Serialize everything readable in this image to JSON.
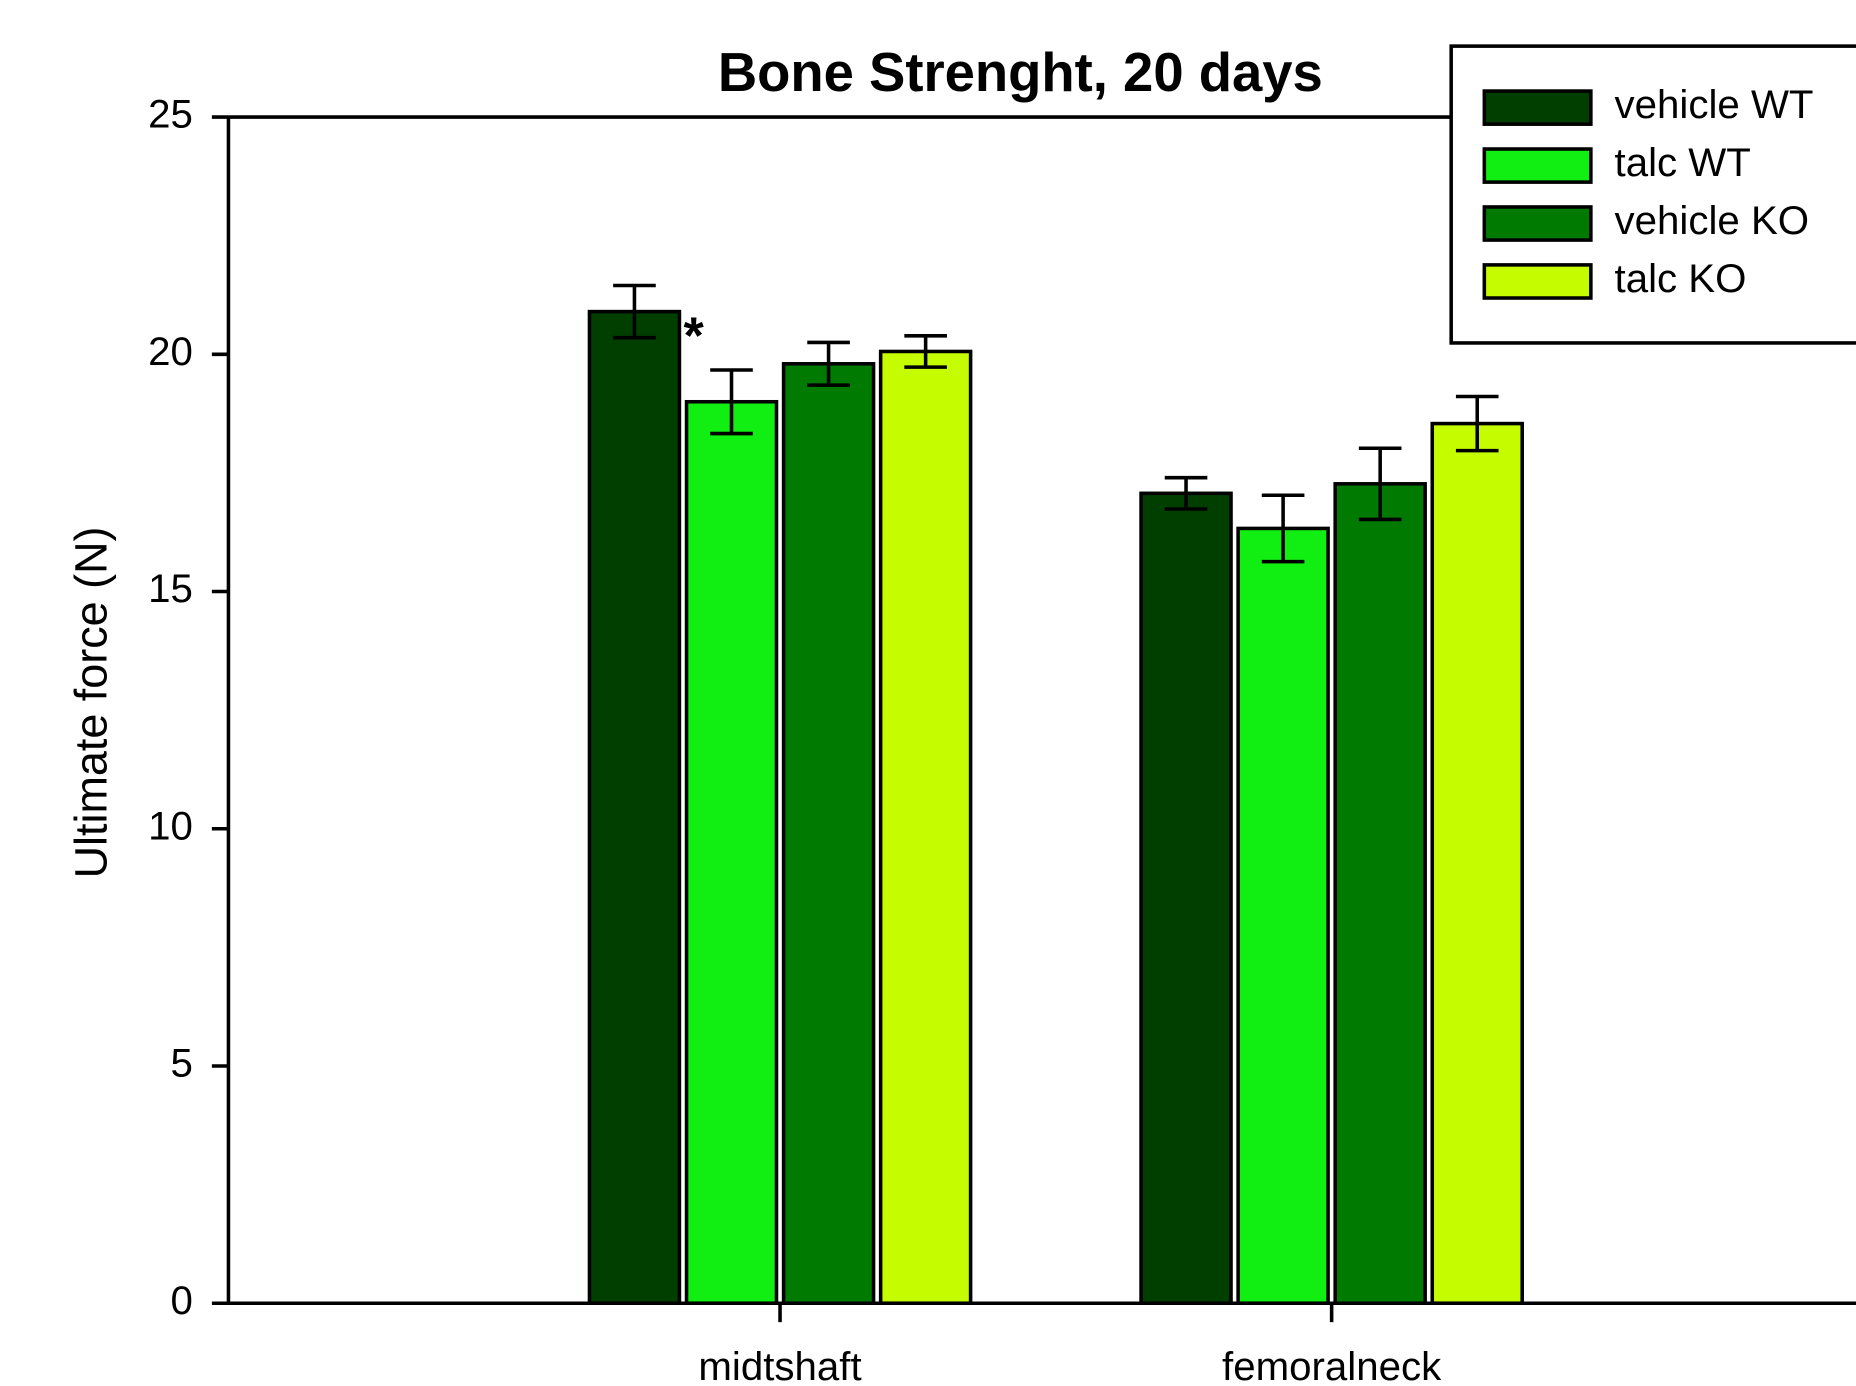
{
  "chart_data": {
    "type": "bar",
    "title": "Bone Strenght, 20 days",
    "y_label": "Ultimate force (N)",
    "categories": [
      "midtshaft",
      "femoralneck"
    ],
    "series": [
      {
        "name": "vehicle WT",
        "color": "#003f00",
        "values": [
          20.9,
          17.07
        ],
        "errors": [
          0.55,
          0.33
        ]
      },
      {
        "name": "talc WT",
        "color": "#11ee11",
        "values": [
          19.0,
          16.33
        ],
        "errors": [
          0.67,
          0.7
        ]
      },
      {
        "name": "vehicle KO",
        "color": "#007a00",
        "values": [
          19.8,
          17.27
        ],
        "errors": [
          0.45,
          0.75
        ]
      },
      {
        "name": "talc KO",
        "color": "#c6fc00",
        "values": [
          20.06,
          18.54
        ],
        "errors": [
          0.33,
          0.57
        ]
      }
    ],
    "annotations": [
      {
        "text": "*"
      }
    ],
    "ylim": [
      0,
      25
    ],
    "yticks": [
      0,
      5,
      10,
      15,
      20,
      25
    ],
    "legend": "top-right"
  }
}
